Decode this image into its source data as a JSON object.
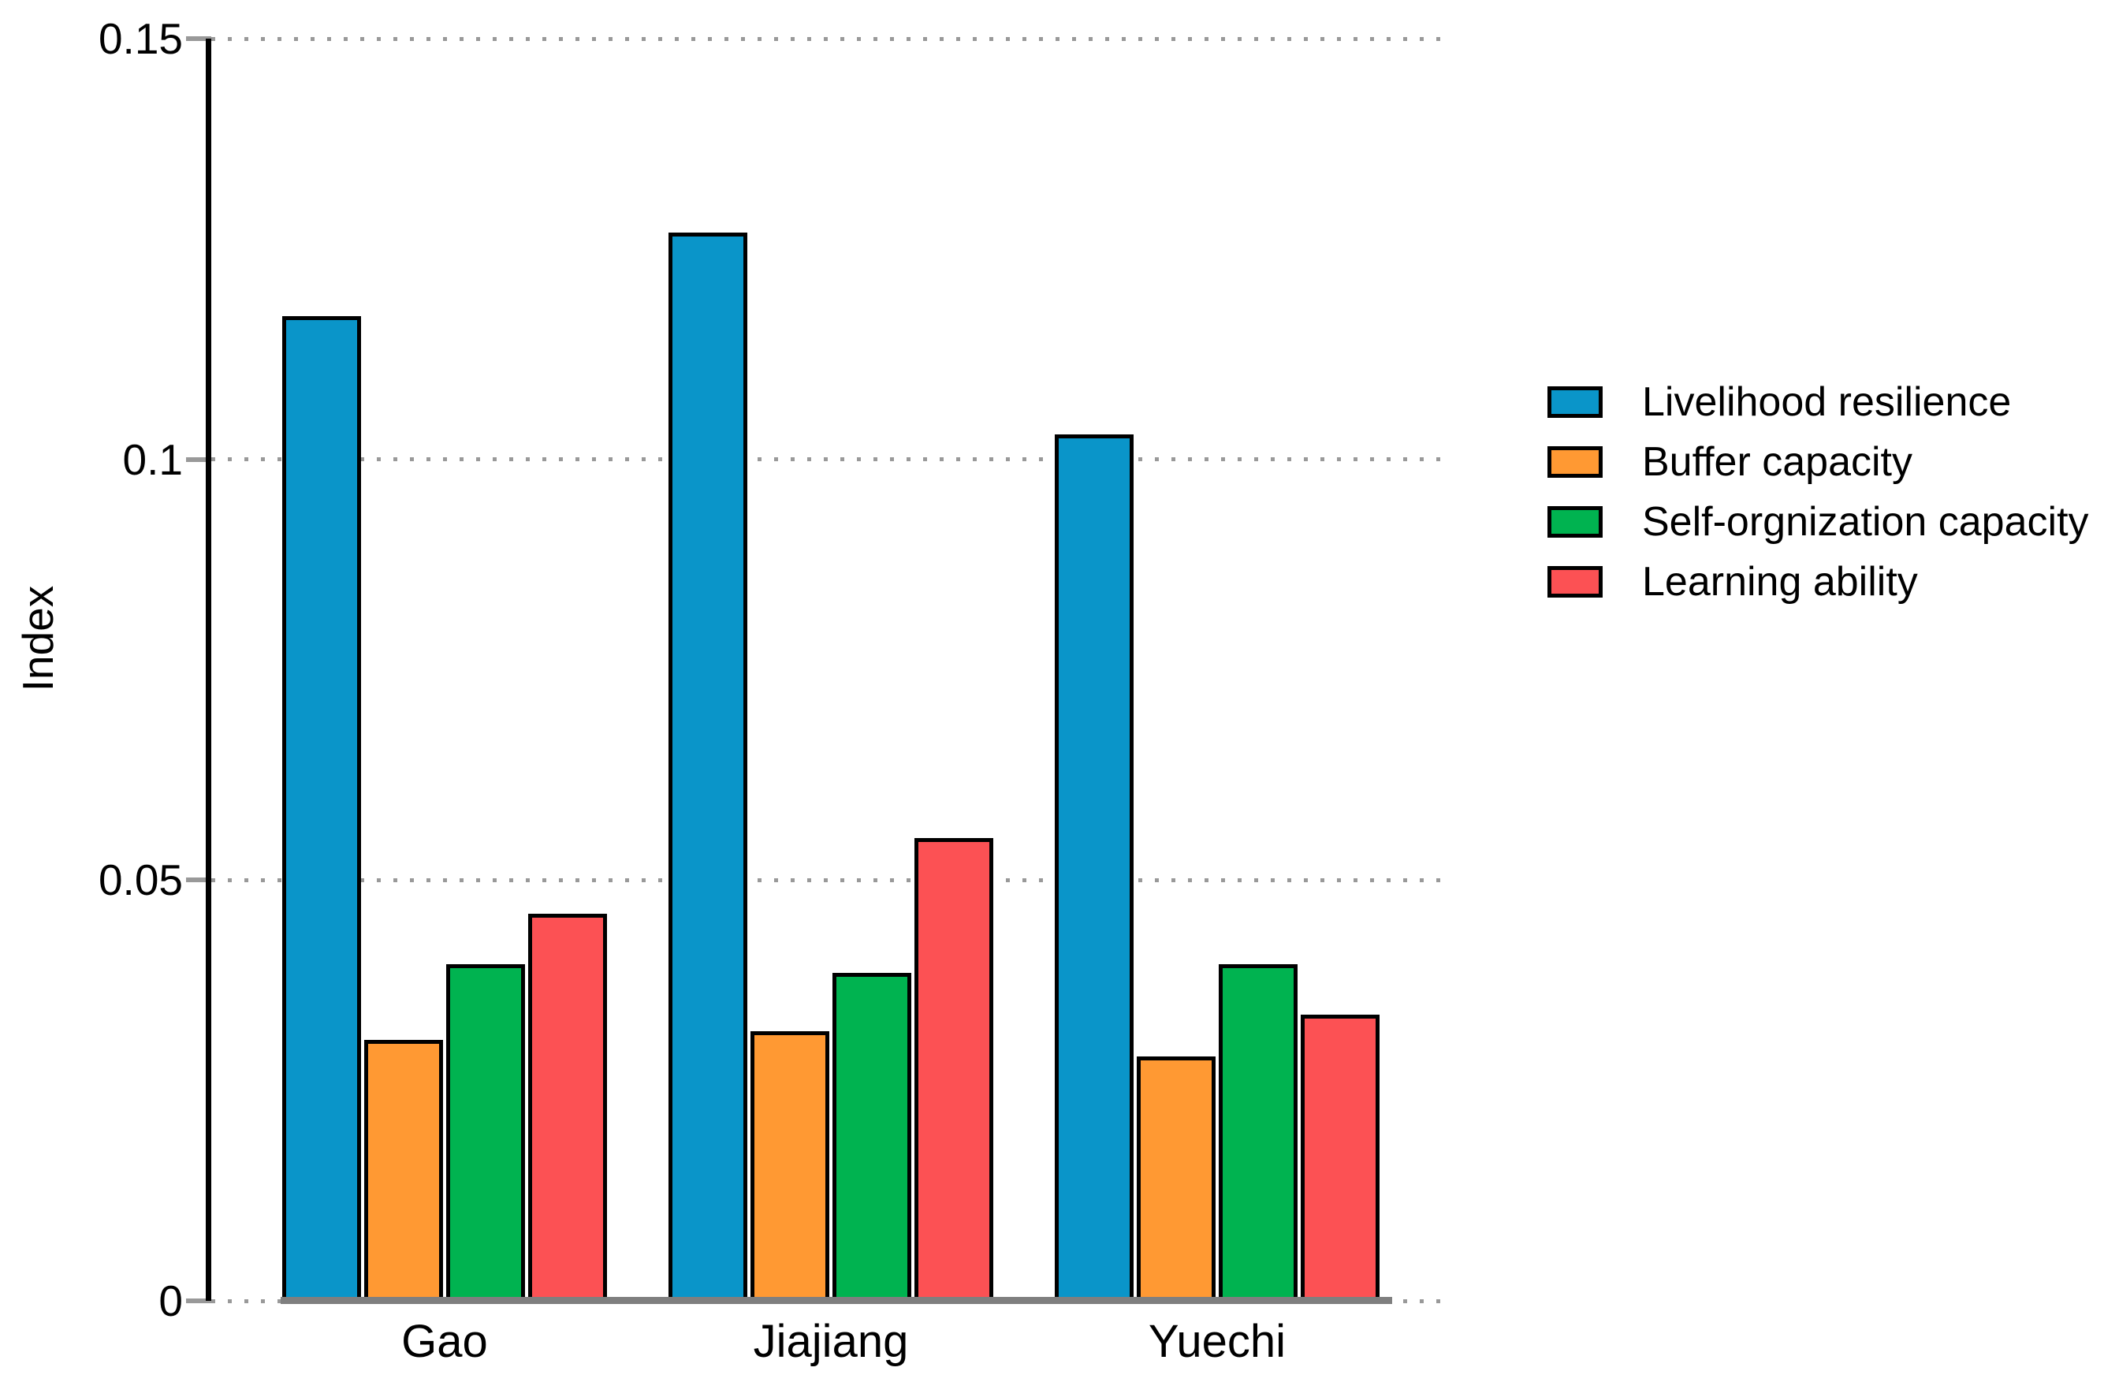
{
  "figure": {
    "background": "#ffffff"
  },
  "chart_data": {
    "type": "bar",
    "title": "",
    "xlabel": "",
    "ylabel": "Index",
    "categories": [
      "Gao",
      "Jiajiang",
      "Yuechi"
    ],
    "series": [
      {
        "name": "Livelihood resilience",
        "color": "#0A95C9",
        "values": [
          0.117,
          0.127,
          0.103
        ]
      },
      {
        "name": "Buffer capacity",
        "color": "#FF9933",
        "values": [
          0.031,
          0.032,
          0.029
        ]
      },
      {
        "name": "Self-orgnization capacity",
        "color": "#00B350",
        "values": [
          0.04,
          0.039,
          0.04
        ]
      },
      {
        "name": "Learning ability",
        "color": "#FC5154",
        "values": [
          0.046,
          0.055,
          0.034
        ]
      }
    ],
    "ylim": [
      0,
      0.15
    ],
    "yticks": [
      {
        "label": "0",
        "value": 0
      },
      {
        "label": "0.05",
        "value": 0.05
      },
      {
        "label": "0.1",
        "value": 0.1
      },
      {
        "label": "0.15",
        "value": 0.15
      }
    ],
    "grid": "horizontal dotted",
    "legend_position": "right of plot, vertical",
    "bar_outline_color": "#000000",
    "axis_colors": {
      "axis_line": "#000000",
      "tick_mark": "#999999",
      "gridline": "#999999",
      "baseline": "#7F7F7F"
    }
  }
}
